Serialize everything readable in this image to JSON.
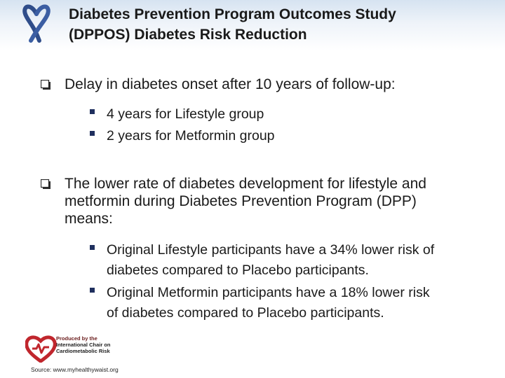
{
  "header": {
    "title_line1": "Diabetes Prevention Program Outcomes Study",
    "title_line2": "(DPPOS) Diabetes Risk Reduction",
    "ribbon_color": "#2f4d8a"
  },
  "bullets": [
    {
      "text": "Delay in diabetes onset after 10 years of follow-up:",
      "sub": [
        "4 years for Lifestyle group",
        "2 years for Metformin group"
      ]
    },
    {
      "text_lines": [
        "The lower rate of diabetes development for lifestyle and",
        "metformin during Diabetes Prevention Program (DPP)",
        "means:"
      ],
      "sub": [
        {
          "lines": [
            "Original Lifestyle participants have a 34% lower risk of",
            "diabetes compared to Placebo participants."
          ]
        },
        {
          "lines": [
            "Original Metformin participants have a 18% lower risk",
            "of diabetes compared to Placebo participants."
          ]
        }
      ]
    }
  ],
  "footer": {
    "logo_line1": "Produced by the",
    "logo_line2": "International Chair on",
    "logo_line3": "Cardiometabolic Risk",
    "source": "Source: www.myhealthywaist.org",
    "logo_color": "#c0262d"
  }
}
